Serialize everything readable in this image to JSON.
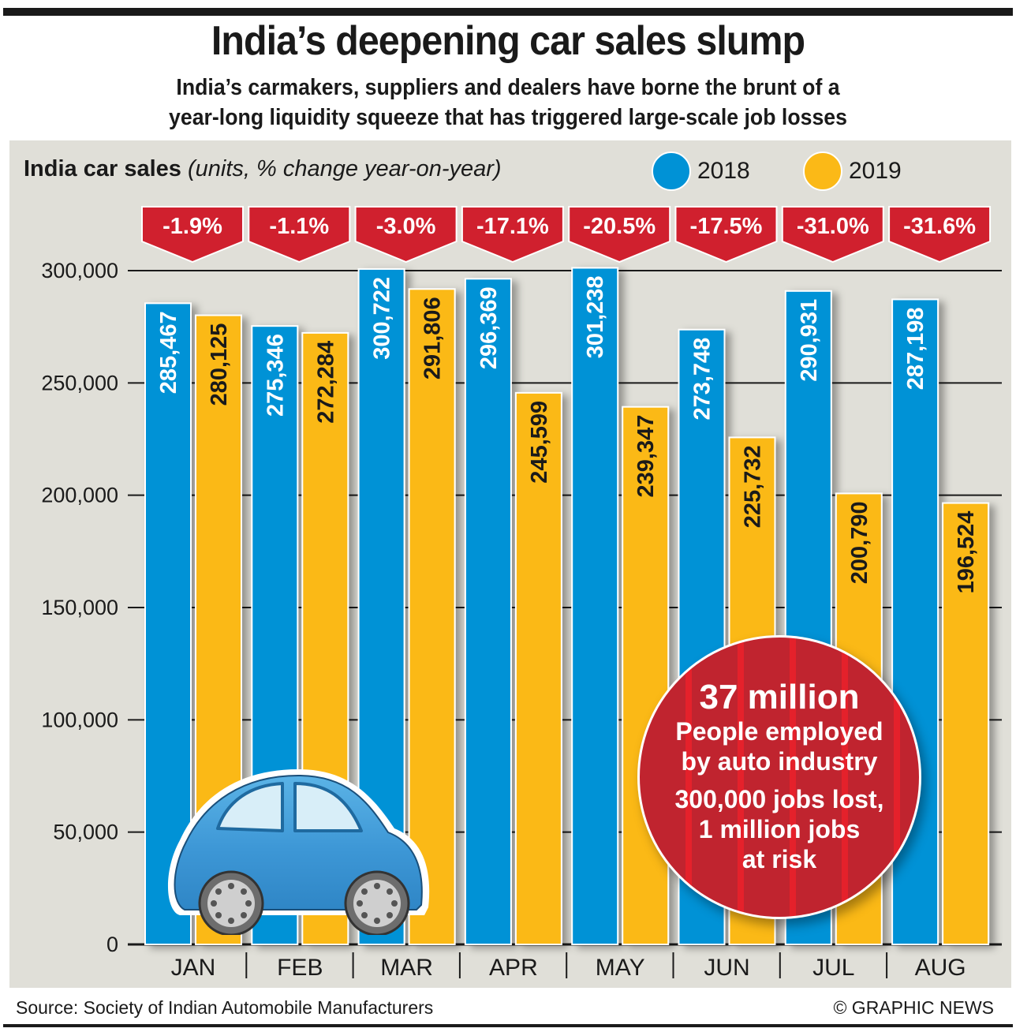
{
  "header": {
    "title": "India’s deepening car sales slump",
    "subtitle_line1": "India’s carmakers, suppliers and dealers have borne the brunt of a",
    "subtitle_line2": "year-long liquidity squeeze that has triggered large-scale job losses"
  },
  "legend": {
    "title_bold": "India car sales",
    "title_italic": "(units, % change year-on-year)",
    "items": [
      {
        "label": "2018",
        "color": "#0092d6"
      },
      {
        "label": "2019",
        "color": "#fbb917"
      }
    ]
  },
  "chart_data": {
    "type": "bar",
    "title": "India car sales",
    "subtitle": "(units, % change year-on-year)",
    "xlabel": "",
    "ylabel": "",
    "ylim": [
      0,
      300000
    ],
    "yticks": [
      0,
      50000,
      100000,
      150000,
      200000,
      250000,
      300000
    ],
    "ytick_labels": [
      "0",
      "50,000",
      "100,000",
      "150,000",
      "200,000",
      "250,000",
      "300,000"
    ],
    "grid": true,
    "legend_position": "top-right",
    "categories": [
      "JAN",
      "FEB",
      "MAR",
      "APR",
      "MAY",
      "JUN",
      "JUL",
      "AUG"
    ],
    "series": [
      {
        "name": "2018",
        "color": "#0092d6",
        "label_color": "#ffffff",
        "values": [
          285467,
          275346,
          300722,
          296369,
          301238,
          273748,
          290931,
          287198
        ],
        "labels": [
          "285,467",
          "275,346",
          "300,722",
          "296,369",
          "301,238",
          "273,748",
          "290,931",
          "287,198"
        ]
      },
      {
        "name": "2019",
        "color": "#fbb917",
        "label_color": "#1a1a1a",
        "values": [
          280125,
          272284,
          291806,
          245599,
          239347,
          225732,
          200790,
          196524
        ],
        "labels": [
          "280,125",
          "272,284",
          "291,806",
          "245,599",
          "239,347",
          "225,732",
          "200,790",
          "196,524"
        ]
      }
    ],
    "pct_change": [
      "-1.9%",
      "-1.1%",
      "-3.0%",
      "-17.1%",
      "-20.5%",
      "-17.5%",
      "-31.0%",
      "-31.6%"
    ],
    "pct_badge_color": "#d0202e"
  },
  "callout": {
    "headline": "37 million",
    "line1": "People employed",
    "line2": "by auto industry",
    "line3": "300,000 jobs lost,",
    "line4": "1 million jobs",
    "line5": "at risk"
  },
  "illustration": {
    "icon": "car-icon"
  },
  "footer": {
    "source": "Source: Society of Indian Automobile Manufacturers",
    "credit": "© GRAPHIC NEWS"
  }
}
